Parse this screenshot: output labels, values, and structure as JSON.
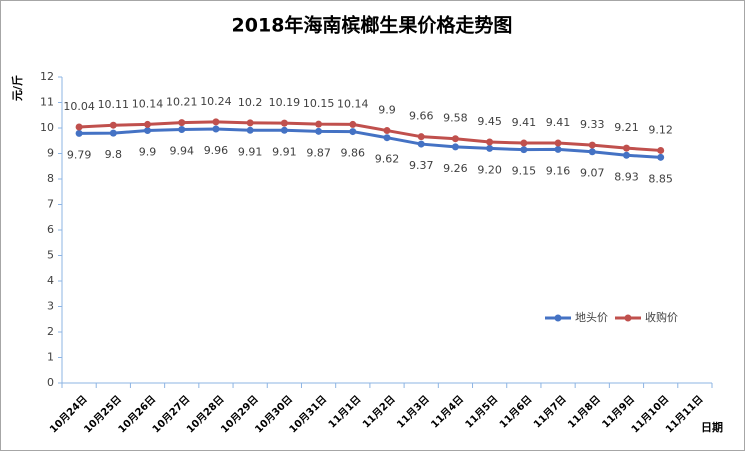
{
  "chart_data": {
    "type": "line",
    "title": "2018年海南槟榔生果价格走势图",
    "y_label": "元/斤",
    "x_label": "日期",
    "categories": [
      "10月24日",
      "10月25日",
      "10月26日",
      "10月27日",
      "10月28日",
      "10月29日",
      "10月30日",
      "10月31日",
      "11月1日",
      "11月2日",
      "11月3日",
      "11月4日",
      "11月5日",
      "11月6日",
      "11月7日",
      "11月8日",
      "11月9日",
      "11月10日",
      "11月11日"
    ],
    "series": [
      {
        "name": "地头价",
        "color": "#4472c4",
        "label_position": "below",
        "values": [
          9.79,
          9.8,
          9.9,
          9.94,
          9.96,
          9.91,
          9.91,
          9.87,
          9.86,
          9.62,
          9.37,
          9.26,
          9.2,
          9.15,
          9.16,
          9.07,
          8.93,
          8.85,
          null
        ],
        "value_labels": [
          "9.79",
          "9.8",
          "9.9",
          "9.94",
          "9.96",
          "9.91",
          "9.91",
          "9.87",
          "9.86",
          "9.62",
          "9.37",
          "9.26",
          "9.20",
          "9.15",
          "9.16",
          "9.07",
          "8.93",
          "8.85",
          null
        ]
      },
      {
        "name": "收购价",
        "color": "#c0504d",
        "label_position": "above",
        "values": [
          10.04,
          10.11,
          10.14,
          10.21,
          10.24,
          10.2,
          10.19,
          10.15,
          10.14,
          9.9,
          9.66,
          9.58,
          9.45,
          9.41,
          9.41,
          9.33,
          9.21,
          9.12,
          null
        ]
      }
    ],
    "ylim": [
      0,
      12
    ],
    "yticks": [
      0,
      1,
      2,
      3,
      4,
      5,
      6,
      7,
      8,
      9,
      10,
      11,
      12
    ],
    "grid": false,
    "legend": "right"
  }
}
